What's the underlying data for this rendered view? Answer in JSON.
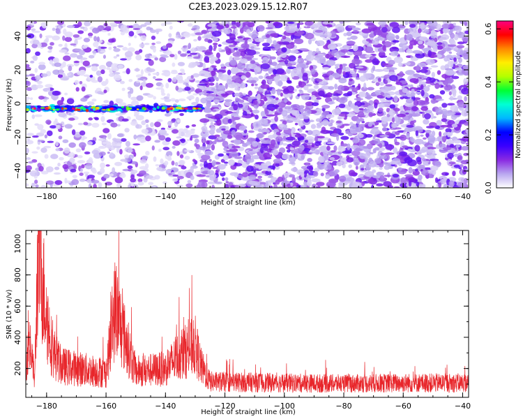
{
  "title": "C2E3.2023.029.15.12.R07",
  "chart_data": [
    {
      "type": "heatmap",
      "xlabel": "Height of straight line (km)",
      "ylabel": "Frequency (Hz)",
      "xlim": [
        -187,
        -38
      ],
      "ylim": [
        -50,
        49
      ],
      "xticks": [
        -180,
        -160,
        -140,
        -120,
        -100,
        -80,
        -60,
        -40
      ],
      "yticks": [
        -40,
        -20,
        0,
        20,
        40
      ],
      "colorbar": {
        "label": "Normalized spectral amplitude",
        "range": [
          0.0,
          0.63
        ],
        "ticks": [
          0.0,
          0.2,
          0.4,
          0.6
        ],
        "colormap": [
          "#ffffff",
          "#b9a7f0",
          "#8a2be2",
          "#3a00ff",
          "#0000ff",
          "#00b7ff",
          "#00ffd5",
          "#00ff33",
          "#b4ff00",
          "#ffee00",
          "#ff8800",
          "#ff0000",
          "#ff0080"
        ]
      },
      "features": {
        "carrier_line": {
          "x_range": [
            -187,
            -128
          ],
          "frequency": -3,
          "peak_amplitude": 0.62
        },
        "sparse_region_x": [
          -187,
          -128
        ],
        "noise_region_x": [
          -128,
          -38
        ],
        "background_amplitude": 0.08
      }
    },
    {
      "type": "line",
      "xlabel": "Height of straight line (km)",
      "ylabel": "SNR (10 * v/v)",
      "xlim": [
        -187,
        -38
      ],
      "ylim": [
        15,
        1085
      ],
      "xticks": [
        -180,
        -160,
        -140,
        -120,
        -100,
        -80,
        -60,
        -40
      ],
      "yticks": [
        200,
        400,
        600,
        800,
        1000
      ],
      "series": [
        {
          "color": "#e8262b",
          "key_points": [
            {
              "x": -187,
              "y": 300
            },
            {
              "x": -186,
              "y": 500
            },
            {
              "x": -184,
              "y": 150
            },
            {
              "x": -183,
              "y": 1085
            },
            {
              "x": -182,
              "y": 1050
            },
            {
              "x": -180,
              "y": 650
            },
            {
              "x": -178,
              "y": 380
            },
            {
              "x": -175,
              "y": 260
            },
            {
              "x": -160,
              "y": 210
            },
            {
              "x": -157,
              "y": 710
            },
            {
              "x": -150,
              "y": 220
            },
            {
              "x": -140,
              "y": 240
            },
            {
              "x": -135,
              "y": 350
            },
            {
              "x": -130,
              "y": 420
            },
            {
              "x": -128,
              "y": 260
            },
            {
              "x": -125,
              "y": 140
            },
            {
              "x": -100,
              "y": 130
            },
            {
              "x": -80,
              "y": 125
            },
            {
              "x": -60,
              "y": 130
            },
            {
              "x": -38,
              "y": 130
            }
          ]
        }
      ]
    }
  ]
}
